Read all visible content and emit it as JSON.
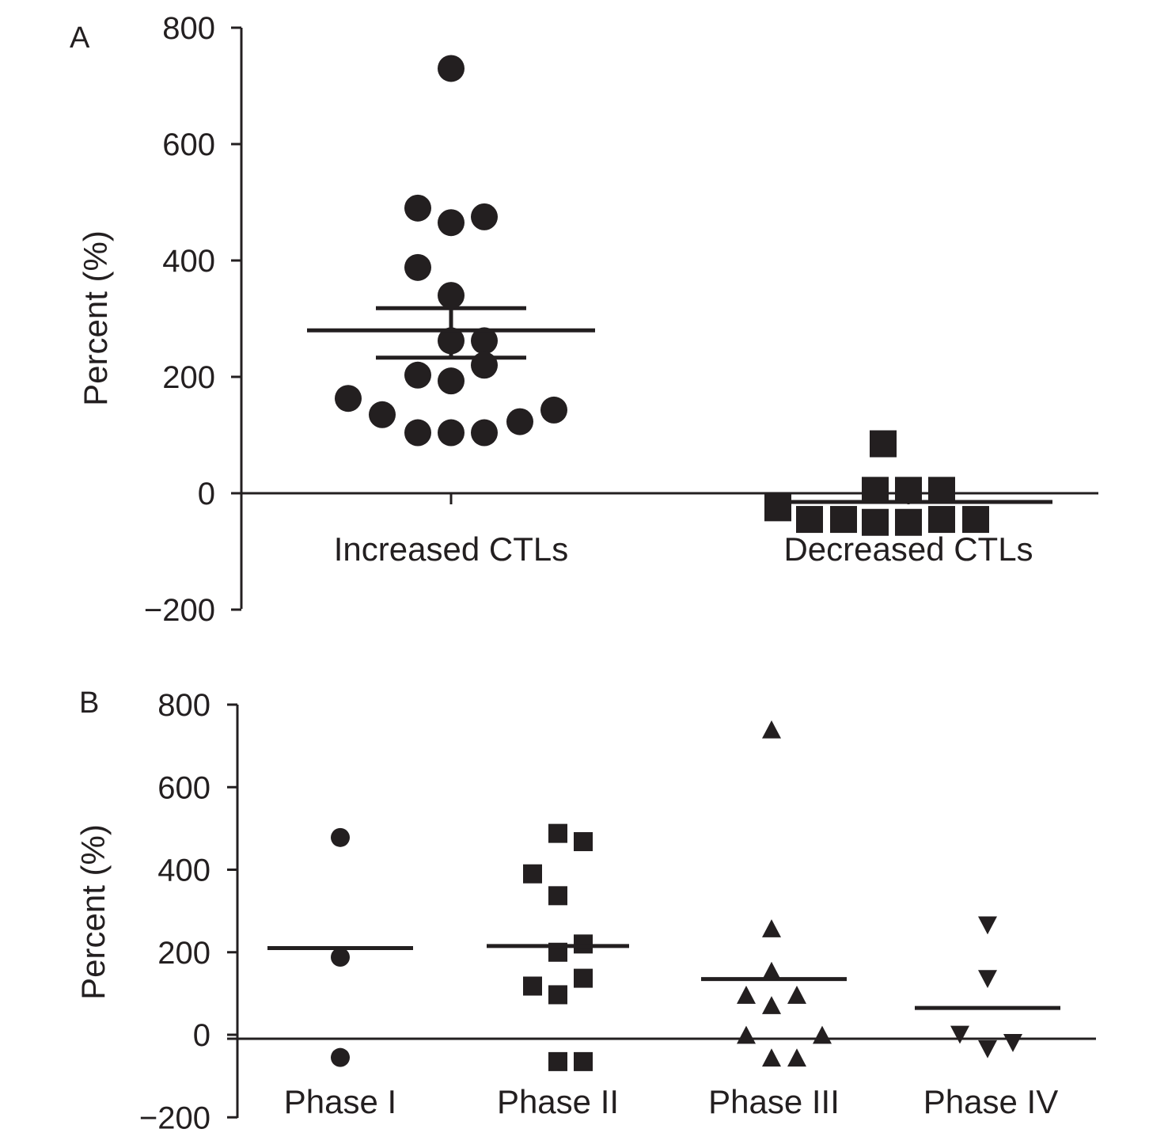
{
  "chart_data": [
    {
      "panel": "A",
      "type": "scatter",
      "ylabel": "Percent (%)",
      "ylim": [
        -200,
        800
      ],
      "yticks": [
        -200,
        0,
        200,
        400,
        600,
        800
      ],
      "grid": false,
      "categories": [
        "Increased CTLs",
        "Decreased CTLs"
      ],
      "series": [
        {
          "category": "Increased CTLs",
          "marker": "circle",
          "points": [
            730,
            490,
            475,
            465,
            388,
            340,
            262,
            262,
            220,
            203,
            193,
            163,
            135,
            123,
            143,
            104,
            104,
            104
          ],
          "mean": 280,
          "sem_upper": 318,
          "sem_lower": 233
        },
        {
          "category": "Decreased CTLs",
          "marker": "square",
          "points": [
            85,
            -25,
            -45,
            -45,
            5,
            -50,
            5,
            -50,
            5,
            -45,
            -45
          ],
          "mean": -15
        }
      ]
    },
    {
      "panel": "B",
      "type": "scatter",
      "ylabel": "Percent (%)",
      "ylim": [
        -200,
        800
      ],
      "yticks": [
        -200,
        0,
        200,
        400,
        600,
        800
      ],
      "grid": false,
      "categories": [
        "Phase I",
        "Phase II",
        "Phase III",
        "Phase IV"
      ],
      "series": [
        {
          "category": "Phase I",
          "marker": "circle",
          "points": [
            478,
            188,
            -55
          ],
          "mean": 210
        },
        {
          "category": "Phase II",
          "marker": "square",
          "points": [
            488,
            468,
            390,
            337,
            220,
            200,
            137,
            118,
            97,
            -65,
            -65
          ],
          "mean": 215
        },
        {
          "category": "Phase III",
          "marker": "triangle-up",
          "points": [
            740,
            258,
            155,
            97,
            72,
            97,
            0,
            0,
            -55,
            -55
          ],
          "mean": 135
        },
        {
          "category": "Phase IV",
          "marker": "triangle-down",
          "points": [
            265,
            135,
            0,
            -35,
            -20
          ],
          "mean": 65
        }
      ]
    }
  ]
}
